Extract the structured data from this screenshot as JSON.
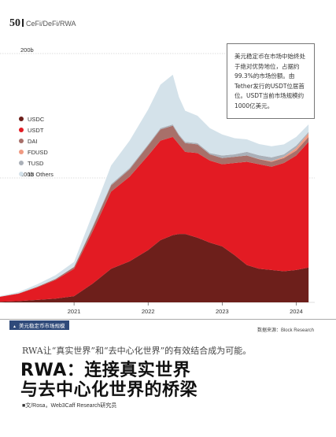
{
  "header": {
    "page_number": "50",
    "section": "CeFi/DeFi/RWA"
  },
  "chart_data": {
    "type": "area",
    "stacked": true,
    "x_ticks": [
      "2021",
      "2022",
      "2023",
      "2024"
    ],
    "y_ticks": [
      {
        "label": "200b",
        "value": 200
      },
      {
        "label": "100b",
        "value": 100
      },
      {
        "label": "0",
        "value": 0
      }
    ],
    "ylim": [
      0,
      200
    ],
    "xlim": [
      "2020-01-01",
      "2024-03-31"
    ],
    "legend_position": "left",
    "x": [
      "2020-01",
      "2020-04",
      "2020-07",
      "2020-10",
      "2021-01",
      "2021-04",
      "2021-07",
      "2021-10",
      "2022-01",
      "2022-03",
      "2022-05",
      "2022-06",
      "2022-07",
      "2022-09",
      "2022-11",
      "2023-01",
      "2023-03",
      "2023-05",
      "2023-07",
      "2023-09",
      "2023-11",
      "2024-01",
      "2024-03"
    ],
    "series": [
      {
        "name": "USDC",
        "color": "#6d1f1b",
        "values": [
          0.5,
          1,
          2,
          3,
          5,
          15,
          27,
          33,
          42,
          50,
          54,
          55,
          55,
          52,
          48,
          45,
          38,
          30,
          27,
          26,
          25,
          26,
          28
        ]
      },
      {
        "name": "USDT",
        "color": "#e31b23",
        "values": [
          4,
          6,
          10,
          15,
          22,
          42,
          62,
          68,
          76,
          80,
          79,
          72,
          66,
          68,
          66,
          66,
          74,
          83,
          84,
          83,
          87,
          92,
          101
        ]
      },
      {
        "name": "DAI",
        "color": "#a8706a",
        "values": [
          0.1,
          0.2,
          0.5,
          0.8,
          1.5,
          3,
          5,
          6,
          8,
          9,
          9,
          7,
          7,
          7,
          5,
          5,
          5,
          5,
          4,
          4,
          4,
          4,
          4
        ]
      },
      {
        "name": "FDUSD",
        "color": "#f09a82",
        "values": [
          0,
          0,
          0,
          0,
          0,
          0,
          0,
          0,
          0,
          0,
          0,
          0,
          0,
          0,
          0,
          0,
          0,
          0,
          0.2,
          0.5,
          1,
          2,
          3
        ]
      },
      {
        "name": "TUSD",
        "color": "#aab0b8",
        "values": [
          0,
          0,
          0,
          0,
          0,
          1,
          1,
          1,
          1,
          1,
          1,
          1,
          1,
          1,
          1,
          2,
          2,
          3,
          3,
          3,
          2,
          2,
          1
        ]
      },
      {
        "name": "13 Others",
        "color": "#d4e2ea",
        "values": [
          0.5,
          1,
          2,
          3,
          4,
          10,
          15,
          22,
          28,
          35,
          40,
          30,
          25,
          22,
          20,
          17,
          13,
          10,
          9,
          9,
          8,
          7,
          6
        ]
      }
    ]
  },
  "callout_text": "美元稳定币在市场中始终处于绝对优势地位，占据约99.3%的市场份额。由Tether发行的USDT位居首位。USDT当前市场规模约1000亿美元。",
  "figure_title": "美元稳定币市场规模",
  "source": "数据来源：Block Research",
  "lead_text": "RWA让“真实世界”和“去中心化世界”的有效结合成为可能。",
  "headline_line1": "RWA：连接真实世界",
  "headline_line2": "与去中心化世界的桥梁",
  "byline": "■文/Rosa，Web3Caff Research研究员"
}
